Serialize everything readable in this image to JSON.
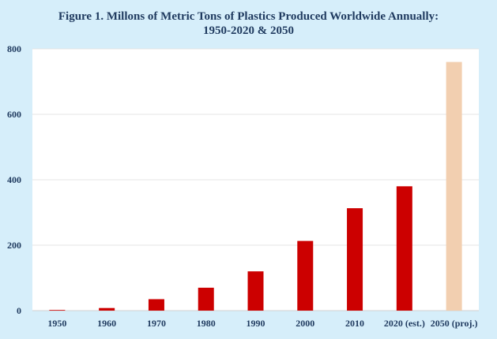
{
  "chart_data": {
    "type": "bar",
    "title_lines": [
      "Figure 1. Millons of Metric Tons of Plastics Produced Worldwide Annually:",
      "1950-2020 & 2050"
    ],
    "categories": [
      "1950",
      "1960",
      "1970",
      "1980",
      "1990",
      "2000",
      "2010",
      "2020 (est.)",
      "2050 (proj.)"
    ],
    "values": [
      2,
      8,
      35,
      70,
      120,
      213,
      313,
      380,
      760
    ],
    "colors": [
      "#cc0000",
      "#cc0000",
      "#cc0000",
      "#cc0000",
      "#cc0000",
      "#cc0000",
      "#cc0000",
      "#cc0000",
      "#f2cfb0"
    ],
    "ylim": [
      0,
      800
    ],
    "yticks": [
      0,
      200,
      400,
      600,
      800
    ],
    "grid": true,
    "xlabel": "",
    "ylabel": ""
  }
}
